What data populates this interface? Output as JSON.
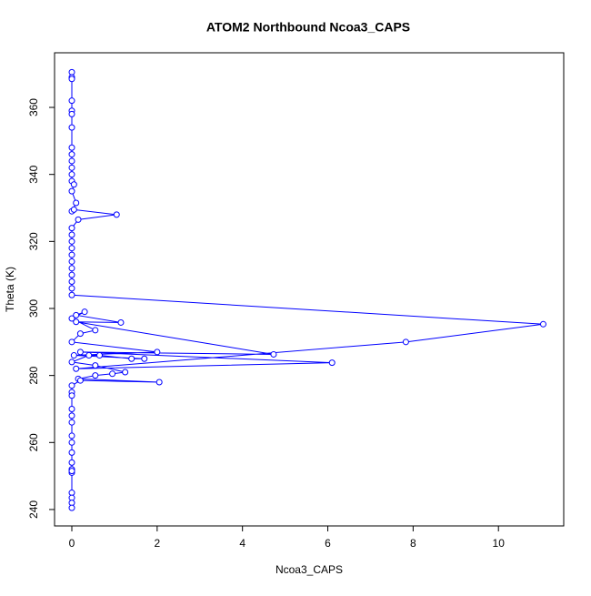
{
  "chart_data": {
    "type": "line",
    "title": "ATOM2 Northbound Ncoa3_CAPS",
    "x_label": "Ncoa3_CAPS",
    "y_label": "Theta (K)",
    "series": [
      {
        "name": "Ncoa3_CAPS",
        "color": "#0000ff",
        "x": [
          0,
          0,
          0,
          0,
          0,
          0,
          0,
          0,
          0,
          0,
          0,
          0,
          0,
          0.05,
          0,
          0.1,
          0,
          0.05,
          1.05,
          0.15,
          0,
          0,
          0,
          0,
          0,
          0,
          0,
          0,
          0,
          0,
          0,
          11.05,
          7.83,
          0.1,
          6.1,
          0.2,
          4.73,
          0.1,
          1.15,
          0.1,
          0.3,
          0,
          0.55,
          0.2,
          0,
          2.0,
          0.05,
          1.7,
          1.4,
          0.65,
          0.4,
          0,
          0.55,
          1.25,
          0.95,
          0.55,
          0.15,
          2.05,
          0.2,
          0,
          0,
          0,
          0,
          0,
          0,
          0,
          0,
          0,
          0,
          0,
          0,
          0,
          0,
          0,
          0,
          0
        ],
        "y": [
          370.5,
          369,
          368.5,
          362,
          359,
          358,
          354,
          348,
          346,
          344,
          342,
          340,
          338,
          337,
          335,
          331.5,
          329,
          329.5,
          328,
          326.5,
          324,
          322,
          320,
          318,
          316,
          314,
          312,
          310,
          308,
          306,
          304,
          295.3,
          290,
          282,
          283.8,
          287,
          286.3,
          296,
          295.8,
          298,
          299,
          297,
          293.5,
          292.5,
          290,
          287,
          286,
          285,
          285,
          286,
          286,
          284,
          283,
          281,
          280.5,
          280,
          279,
          278,
          278.5,
          277,
          275,
          274,
          270,
          268,
          266,
          262,
          260,
          257,
          254,
          252,
          251,
          251.5,
          245,
          243.5,
          242,
          240.5
        ]
      }
    ],
    "xlim": [
      -0.405,
      11.53
    ],
    "ylim": [
      235.1,
      376.3
    ],
    "xticks": [
      0,
      2,
      4,
      6,
      8,
      10
    ],
    "yticks": [
      240,
      260,
      280,
      300,
      320,
      340,
      360
    ],
    "grid": false
  }
}
